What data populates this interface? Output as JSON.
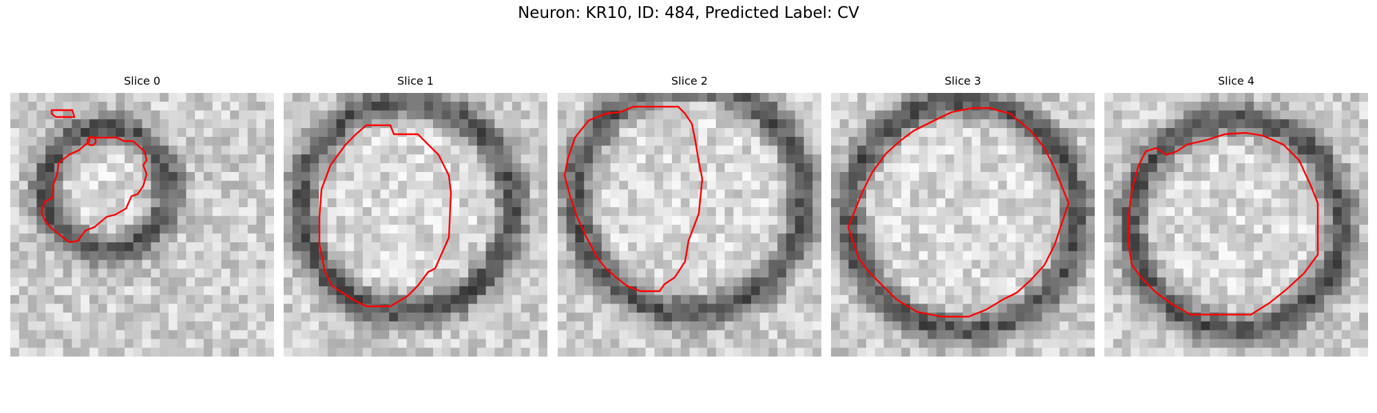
{
  "figure": {
    "title": "Neuron: KR10, ID: 484, Predicted Label: CV"
  },
  "panels": [
    {
      "title": "Slice 0"
    },
    {
      "title": "Slice 1"
    },
    {
      "title": "Slice 2"
    },
    {
      "title": "Slice 3"
    },
    {
      "title": "Slice 4"
    }
  ],
  "colors": {
    "contour": "#ff0000",
    "background": "#ffffff"
  }
}
